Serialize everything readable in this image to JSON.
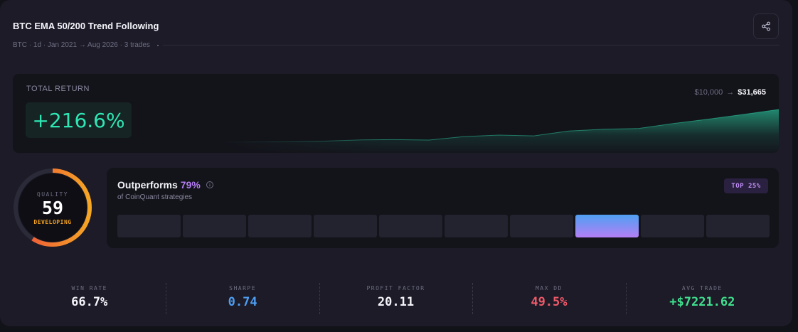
{
  "header": {
    "title": "BTC EMA 50/200 Trend Following",
    "subtitle": "BTC · 1d · Jan 2021 → Aug 2026 · 3 trades",
    "share_icon": "share-icon"
  },
  "total_return": {
    "label": "TOTAL RETURN",
    "value": "+216.6%",
    "start_equity": "$10,000",
    "arrow": "→",
    "end_equity": "$31,665",
    "equity_curve": [
      10000,
      10150,
      10250,
      10700,
      11500,
      11700,
      11400,
      13700,
      14700,
      14200,
      17400,
      18600,
      19100,
      22400,
      25300,
      28400,
      31665
    ],
    "accent_color": "#2ee6b4"
  },
  "quality": {
    "label": "QUALITY",
    "score": "59",
    "score_fraction": 0.59,
    "status": "DEVELOPING"
  },
  "outperforms": {
    "title": "Outperforms",
    "percent": "79%",
    "info_icon": "info-icon",
    "subtitle": "of CoinQuant strategies",
    "badge": "TOP 25%",
    "bins_total": 10,
    "active_bin": 8
  },
  "stats": [
    {
      "label": "WIN RATE",
      "value": "66.7%",
      "color": "#f4f4fa"
    },
    {
      "label": "SHARPE",
      "value": "0.74",
      "color": "#4e9ef2"
    },
    {
      "label": "PROFIT FACTOR",
      "value": "20.11",
      "color": "#f4f4fa"
    },
    {
      "label": "MAX DD",
      "value": "49.5%",
      "color": "#f05a6a"
    },
    {
      "label": "AVG TRADE",
      "value": "+$7221.62",
      "color": "#3fe08e"
    }
  ]
}
